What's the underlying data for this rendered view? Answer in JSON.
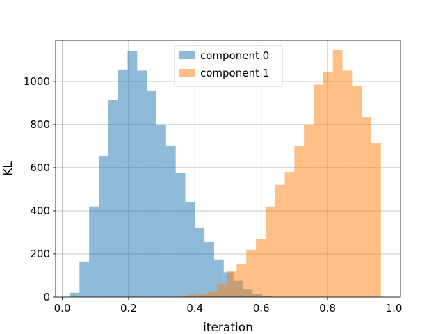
{
  "chart_data": {
    "type": "bar",
    "subtype": "overlapping-histogram",
    "xlabel": "iteration",
    "ylabel": "KL",
    "xlim": [
      -0.02,
      1.02
    ],
    "ylim": [
      0,
      1190
    ],
    "xticks": [
      0.0,
      0.2,
      0.4,
      0.6,
      0.8,
      1.0
    ],
    "xtick_labels": [
      "0.0",
      "0.2",
      "0.4",
      "0.6",
      "0.8",
      "1.0"
    ],
    "yticks": [
      0,
      200,
      400,
      600,
      800,
      1000
    ],
    "ytick_labels": [
      "0",
      "200",
      "400",
      "600",
      "800",
      "1000"
    ],
    "grid": true,
    "legend_position": "top-center",
    "bar_opacity": 0.5,
    "series": [
      {
        "name": "component 0",
        "color": "#1f77b4",
        "bin_edges": [
          0.023,
          0.052,
          0.081,
          0.11,
          0.139,
          0.168,
          0.197,
          0.226,
          0.255,
          0.284,
          0.313,
          0.342,
          0.371,
          0.4,
          0.429,
          0.458,
          0.487,
          0.516,
          0.545,
          0.574,
          0.603,
          0.632
        ],
        "values": [
          20,
          165,
          420,
          655,
          915,
          1055,
          1140,
          1050,
          955,
          800,
          700,
          575,
          440,
          320,
          255,
          175,
          115,
          75,
          35,
          15,
          5
        ]
      },
      {
        "name": "component 1",
        "color": "#ff7f0e",
        "bin_edges": [
          0.352,
          0.381,
          0.41,
          0.439,
          0.468,
          0.497,
          0.526,
          0.555,
          0.584,
          0.613,
          0.642,
          0.671,
          0.7,
          0.729,
          0.758,
          0.787,
          0.816,
          0.845,
          0.874,
          0.903,
          0.932,
          0.961
        ],
        "values": [
          5,
          10,
          15,
          25,
          60,
          120,
          155,
          220,
          270,
          420,
          520,
          580,
          700,
          800,
          985,
          1045,
          1145,
          1050,
          980,
          835,
          715,
          15
        ]
      }
    ]
  }
}
